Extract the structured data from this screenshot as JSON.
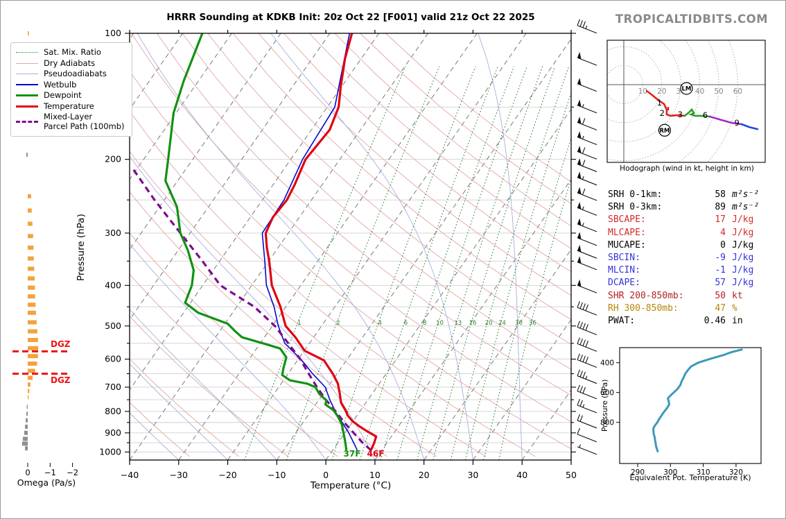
{
  "title": "HRRR Sounding at KDKB Init: 20z Oct 22 [F001] valid 21z Oct 22 2025",
  "brand": "TROPICALTIDBITS.COM",
  "skewt": {
    "xlabel": "Temperature (°C)",
    "ylabel": "Pressure (hPa)",
    "x_ticks": [
      -40,
      -30,
      -20,
      -10,
      0,
      10,
      20,
      30,
      40,
      50
    ],
    "p_ticks": [
      100,
      200,
      300,
      400,
      500,
      600,
      700,
      800,
      900,
      1000
    ],
    "mixing_ratio_labels": [
      1,
      2,
      4,
      6,
      8,
      10,
      13,
      16,
      20,
      24,
      30,
      36
    ],
    "surface_labels": [
      {
        "text": "37F",
        "color": "#119111"
      },
      {
        "text": "46F",
        "color": "#e00010"
      }
    ],
    "legend": [
      {
        "label": "Sat. Mix. Ratio",
        "swatch": "sw-mix"
      },
      {
        "label": "Dry Adiabats",
        "swatch": "sw-dry"
      },
      {
        "label": "Pseudoadiabats",
        "swatch": "sw-pse"
      },
      {
        "label": "Wetbulb",
        "swatch": "sw-wet"
      },
      {
        "label": "Dewpoint",
        "swatch": "sw-dew"
      },
      {
        "label": "Temperature",
        "swatch": "sw-tmp"
      },
      {
        "label": "Mixed-Layer Parcel Path (100mb)",
        "label_line1": "Mixed-Layer",
        "label_line2": "Parcel Path (100mb)",
        "swatch": "sw-par"
      }
    ]
  },
  "omega": {
    "axis_label": "Omega (Pa/s)",
    "ticks": [
      0,
      -1,
      -2
    ],
    "dgz_label": "DGZ"
  },
  "hodograph": {
    "caption": "Hodograph (wind in kt, height in km)"
  },
  "thetae_panel": {
    "xlabel": "Equivalent Pot. Temperature (K)",
    "ylabel": "Pressure (hPa)"
  },
  "stats": {
    "rows": [
      {
        "label": "SRH 0-1km:",
        "value": "58",
        "unit": "m²s⁻²",
        "color": "#000000",
        "unit_italic": true
      },
      {
        "label": "SRH 0-3km:",
        "value": "89",
        "unit": "m²s⁻²",
        "color": "#000000",
        "unit_italic": true
      },
      {
        "label": "SBCAPE:",
        "value": "17",
        "unit": "J/kg",
        "color": "#d42a2a"
      },
      {
        "label": "MLCAPE:",
        "value": "4",
        "unit": "J/kg",
        "color": "#d42a2a"
      },
      {
        "label": "MUCAPE:",
        "value": "0",
        "unit": "J/kg",
        "color": "#000000"
      },
      {
        "label": "SBCIN:",
        "value": "-9",
        "unit": "J/kg",
        "color": "#3333dd"
      },
      {
        "label": "MLCIN:",
        "value": "-1",
        "unit": "J/kg",
        "color": "#3333dd"
      },
      {
        "label": "DCAPE:",
        "value": "57",
        "unit": "J/kg",
        "color": "#3333dd"
      },
      {
        "label": "SHR 200-850mb:",
        "value": "50",
        "unit": "kt",
        "color": "#b22222"
      },
      {
        "label": "RH 300-850mb:",
        "value": "47",
        "unit": "%",
        "color": "#b8860b"
      },
      {
        "label": "PWAT:",
        "value": "0.46",
        "unit": "in",
        "color": "#000000"
      }
    ]
  },
  "colors": {
    "temperature": "#e00010",
    "dewpoint": "#119111",
    "wetbulb": "#0008cc",
    "parcel": "#7d0d8e",
    "dry_adiabat": "#e2a6a6",
    "pseudoadiabat": "#a8aede",
    "mixing_ratio": "#2e7d32",
    "isotherm": "#777777",
    "grid": "#cfcfcf",
    "dgz": "#ee1111",
    "omega_upward": "#f2a33c",
    "omega_downward": "#8f8f8f",
    "thetae_curve": "#3a9ab8",
    "barb": "#111111"
  },
  "chart_data": [
    {
      "id": "sounding",
      "type": "line",
      "title": "HRRR Sounding at KDKB Init: 20z Oct 22 [F001] valid 21z Oct 22 2025",
      "xlabel": "Temperature (°C)",
      "ylabel": "Pressure (hPa)",
      "x_range": [
        -40,
        50
      ],
      "pressure_range": [
        100,
        1045
      ],
      "series": [
        {
          "name": "Temperature",
          "units": "p_hPa,T_C",
          "points": [
            [
              100,
              -55.5
            ],
            [
              115,
              -53.3
            ],
            [
              134,
              -50.2
            ],
            [
              150,
              -47.7
            ],
            [
              170,
              -46.3
            ],
            [
              200,
              -47.0
            ],
            [
              230,
              -45.6
            ],
            [
              250,
              -45.0
            ],
            [
              275,
              -45.4
            ],
            [
              300,
              -44.6
            ],
            [
              325,
              -42.3
            ],
            [
              350,
              -39.9
            ],
            [
              400,
              -35.9
            ],
            [
              450,
              -31.1
            ],
            [
              500,
              -27.3
            ],
            [
              532,
              -23.7
            ],
            [
              573,
              -19.9
            ],
            [
              604,
              -14.6
            ],
            [
              650,
              -10.9
            ],
            [
              687,
              -8.4
            ],
            [
              726,
              -6.6
            ],
            [
              762,
              -5.1
            ],
            [
              785,
              -3.7
            ],
            [
              800,
              -2.8
            ],
            [
              818,
              -1.9
            ],
            [
              844,
              -0.1
            ],
            [
              870,
              2.2
            ],
            [
              891,
              4.2
            ],
            [
              918,
              6.9
            ],
            [
              950,
              7.4
            ],
            [
              990,
              7.8
            ]
          ]
        },
        {
          "name": "Dewpoint",
          "units": "p_hPa,T_C",
          "points": [
            [
              100,
              -86
            ],
            [
              130,
              -83
            ],
            [
              155,
              -80.5
            ],
            [
              200,
              -75
            ],
            [
              225,
              -72.5
            ],
            [
              260,
              -66.4
            ],
            [
              300,
              -62
            ],
            [
              330,
              -58
            ],
            [
              368,
              -54
            ],
            [
              400,
              -52.2
            ],
            [
              440,
              -51.1
            ],
            [
              465,
              -47
            ],
            [
              494,
              -39.4
            ],
            [
              515,
              -36.8
            ],
            [
              532,
              -34.6
            ],
            [
              552,
              -28.9
            ],
            [
              566,
              -25.2
            ],
            [
              594,
              -22.7
            ],
            [
              632,
              -21.7
            ],
            [
              655,
              -21.0
            ],
            [
              674,
              -18.7
            ],
            [
              687,
              -14.6
            ],
            [
              700,
              -12.5
            ],
            [
              726,
              -10.8
            ],
            [
              753,
              -8.4
            ],
            [
              770,
              -8.0
            ],
            [
              795,
              -5.5
            ],
            [
              822,
              -3.8
            ],
            [
              857,
              -1.9
            ],
            [
              902,
              -0.2
            ],
            [
              947,
              1.4
            ],
            [
              990,
              2.8
            ]
          ]
        },
        {
          "name": "Wetbulb",
          "units": "p_hPa,T_C",
          "points": [
            [
              100,
              -56
            ],
            [
              150,
              -48.5
            ],
            [
              200,
              -47.6
            ],
            [
              250,
              -45.6
            ],
            [
              300,
              -45.3
            ],
            [
              350,
              -40.8
            ],
            [
              400,
              -37.0
            ],
            [
              450,
              -32.4
            ],
            [
              500,
              -28.8
            ],
            [
              550,
              -25.0
            ],
            [
              600,
              -19.5
            ],
            [
              650,
              -15.0
            ],
            [
              700,
              -10.5
            ],
            [
              750,
              -7.8
            ],
            [
              800,
              -5.0
            ],
            [
              850,
              -2.0
            ],
            [
              900,
              0.8
            ],
            [
              950,
              3.2
            ],
            [
              990,
              5.0
            ]
          ]
        },
        {
          "name": "Mixed-Layer Parcel Path (100mb)",
          "units": "p_hPa,T_C",
          "dashed": true,
          "points": [
            [
              990,
              7.8
            ],
            [
              950,
              5.0
            ],
            [
              925,
              3.4
            ],
            [
              900,
              1.8
            ],
            [
              850,
              -1.6
            ],
            [
              800,
              -4.9
            ],
            [
              750,
              -8.6
            ],
            [
              700,
              -12.2
            ],
            [
              650,
              -15.8
            ],
            [
              600,
              -19.6
            ],
            [
              550,
              -24.3
            ],
            [
              500,
              -29.5
            ],
            [
              450,
              -36.4
            ],
            [
              400,
              -46.4
            ],
            [
              350,
              -53.5
            ],
            [
              300,
              -62
            ],
            [
              250,
              -72
            ],
            [
              210,
              -81
            ]
          ]
        }
      ]
    },
    {
      "id": "omega",
      "type": "bar",
      "xlabel": "Omega (Pa/s)",
      "x_ticks": [
        0,
        -1,
        -2
      ],
      "dgz_pressures": [
        575,
        650
      ],
      "bars": [
        [
          100,
          -0.05
        ],
        [
          170,
          0.05
        ],
        [
          195,
          0.06
        ],
        [
          245,
          -0.15
        ],
        [
          265,
          -0.18
        ],
        [
          285,
          -0.21
        ],
        [
          305,
          -0.24
        ],
        [
          325,
          -0.26
        ],
        [
          345,
          -0.27
        ],
        [
          365,
          -0.29
        ],
        [
          385,
          -0.31
        ],
        [
          405,
          -0.32
        ],
        [
          425,
          -0.33
        ],
        [
          445,
          -0.35
        ],
        [
          465,
          -0.37
        ],
        [
          490,
          -0.4
        ],
        [
          515,
          -0.43
        ],
        [
          540,
          -0.46
        ],
        [
          565,
          -0.47
        ],
        [
          590,
          -0.46
        ],
        [
          615,
          -0.42
        ],
        [
          640,
          -0.33
        ],
        [
          665,
          -0.22
        ],
        [
          690,
          -0.12
        ],
        [
          715,
          -0.07
        ],
        [
          740,
          -0.04
        ],
        [
          780,
          0.04
        ],
        [
          810,
          0.06
        ],
        [
          840,
          0.09
        ],
        [
          870,
          0.12
        ],
        [
          900,
          0.16
        ],
        [
          930,
          0.22
        ],
        [
          955,
          0.25
        ],
        [
          980,
          0.12
        ]
      ]
    },
    {
      "id": "wind_barbs",
      "type": "barbs",
      "units": "kt",
      "levels": [
        [
          98,
          35
        ],
        [
          117,
          50
        ],
        [
          135,
          50
        ],
        [
          152,
          55
        ],
        [
          167,
          60
        ],
        [
          181,
          55
        ],
        [
          196,
          60
        ],
        [
          210,
          60
        ],
        [
          226,
          55
        ],
        [
          246,
          60
        ],
        [
          267,
          55
        ],
        [
          292,
          55
        ],
        [
          315,
          50
        ],
        [
          338,
          50
        ],
        [
          360,
          50
        ],
        [
          409,
          50
        ],
        [
          462,
          40
        ],
        [
          515,
          40
        ],
        [
          564,
          40
        ],
        [
          616,
          40
        ],
        [
          673,
          35
        ],
        [
          732,
          30
        ],
        [
          791,
          25
        ],
        [
          860,
          20
        ],
        [
          928,
          10
        ],
        [
          994,
          5
        ]
      ]
    },
    {
      "id": "hodograph",
      "type": "line",
      "caption": "Hodograph (wind in kt, height in km)",
      "ring_interval_kt": 10,
      "rings": [
        10,
        20,
        30,
        40,
        50,
        60
      ],
      "segments": [
        {
          "km": "0-3",
          "color": "#e02020",
          "points": [
            [
              12,
              -3.3
            ],
            [
              15,
              -5.5
            ],
            [
              18,
              -8
            ],
            [
              21.2,
              -10.2
            ],
            [
              22.6,
              -13.2
            ],
            [
              22.6,
              -15.7
            ],
            [
              24.5,
              -16.4
            ],
            [
              28,
              -16.1
            ],
            [
              32.1,
              -16.4
            ]
          ]
        },
        {
          "km": "3-6",
          "color": "#28a028",
          "points": [
            [
              32.1,
              -16.4
            ],
            [
              34.3,
              -14.6
            ],
            [
              35.8,
              -13.1
            ],
            [
              36.9,
              -15.0
            ],
            [
              35.4,
              -15.7
            ],
            [
              37.6,
              -16.4
            ],
            [
              40.5,
              -16.4
            ],
            [
              45.3,
              -16.8
            ]
          ]
        },
        {
          "km": "6-9",
          "color": "#a828c8",
          "points": [
            [
              45.3,
              -16.8
            ],
            [
              51.5,
              -18.6
            ],
            [
              56.9,
              -20.1
            ],
            [
              62,
              -20.8
            ]
          ]
        },
        {
          "km": "9+",
          "color": "#2048e0",
          "points": [
            [
              62,
              -20.8
            ],
            [
              66,
              -22.3
            ],
            [
              70.4,
              -23.4
            ]
          ]
        }
      ],
      "height_labels": [
        {
          "text": "1",
          "u": 21.2,
          "v": -10.2
        },
        {
          "text": "2",
          "u": 22.6,
          "v": -15.7
        },
        {
          "text": "3",
          "u": 32.1,
          "v": -16.4
        },
        {
          "text": "6",
          "u": 45.3,
          "v": -16.8
        },
        {
          "text": "9",
          "u": 62.0,
          "v": -20.8
        }
      ],
      "storm_motions": [
        {
          "label": "LM",
          "u": 33,
          "v": -2
        },
        {
          "label": "RM",
          "u": 21.5,
          "v": -24
        }
      ]
    },
    {
      "id": "theta_e",
      "type": "line",
      "xlabel": "Equivalent Pot. Temperature (K)",
      "ylabel": "Pressure (hPa)",
      "x_ticks": [
        290,
        300,
        310,
        320
      ],
      "p_ticks": [
        400,
        600,
        800
      ],
      "points": [
        [
          310,
          322
        ],
        [
          330,
          318.5
        ],
        [
          350,
          316
        ],
        [
          375,
          312
        ],
        [
          400,
          308.5
        ],
        [
          425,
          306.3
        ],
        [
          450,
          305.3
        ],
        [
          475,
          304.5
        ],
        [
          500,
          304
        ],
        [
          525,
          303.4
        ],
        [
          550,
          303
        ],
        [
          575,
          302.2
        ],
        [
          600,
          301
        ],
        [
          620,
          300
        ],
        [
          640,
          299.2
        ],
        [
          660,
          299.5
        ],
        [
          680,
          299.6
        ],
        [
          700,
          299.1
        ],
        [
          720,
          298.4
        ],
        [
          740,
          297.7
        ],
        [
          760,
          297.1
        ],
        [
          780,
          296.5
        ],
        [
          800,
          296
        ],
        [
          820,
          295.3
        ],
        [
          840,
          294.8
        ],
        [
          860,
          294.8
        ],
        [
          880,
          294.9
        ],
        [
          900,
          295.2
        ],
        [
          920,
          295.3
        ],
        [
          940,
          295.5
        ],
        [
          960,
          295.6
        ],
        [
          980,
          295.9
        ],
        [
          1000,
          296.2
        ]
      ]
    }
  ]
}
